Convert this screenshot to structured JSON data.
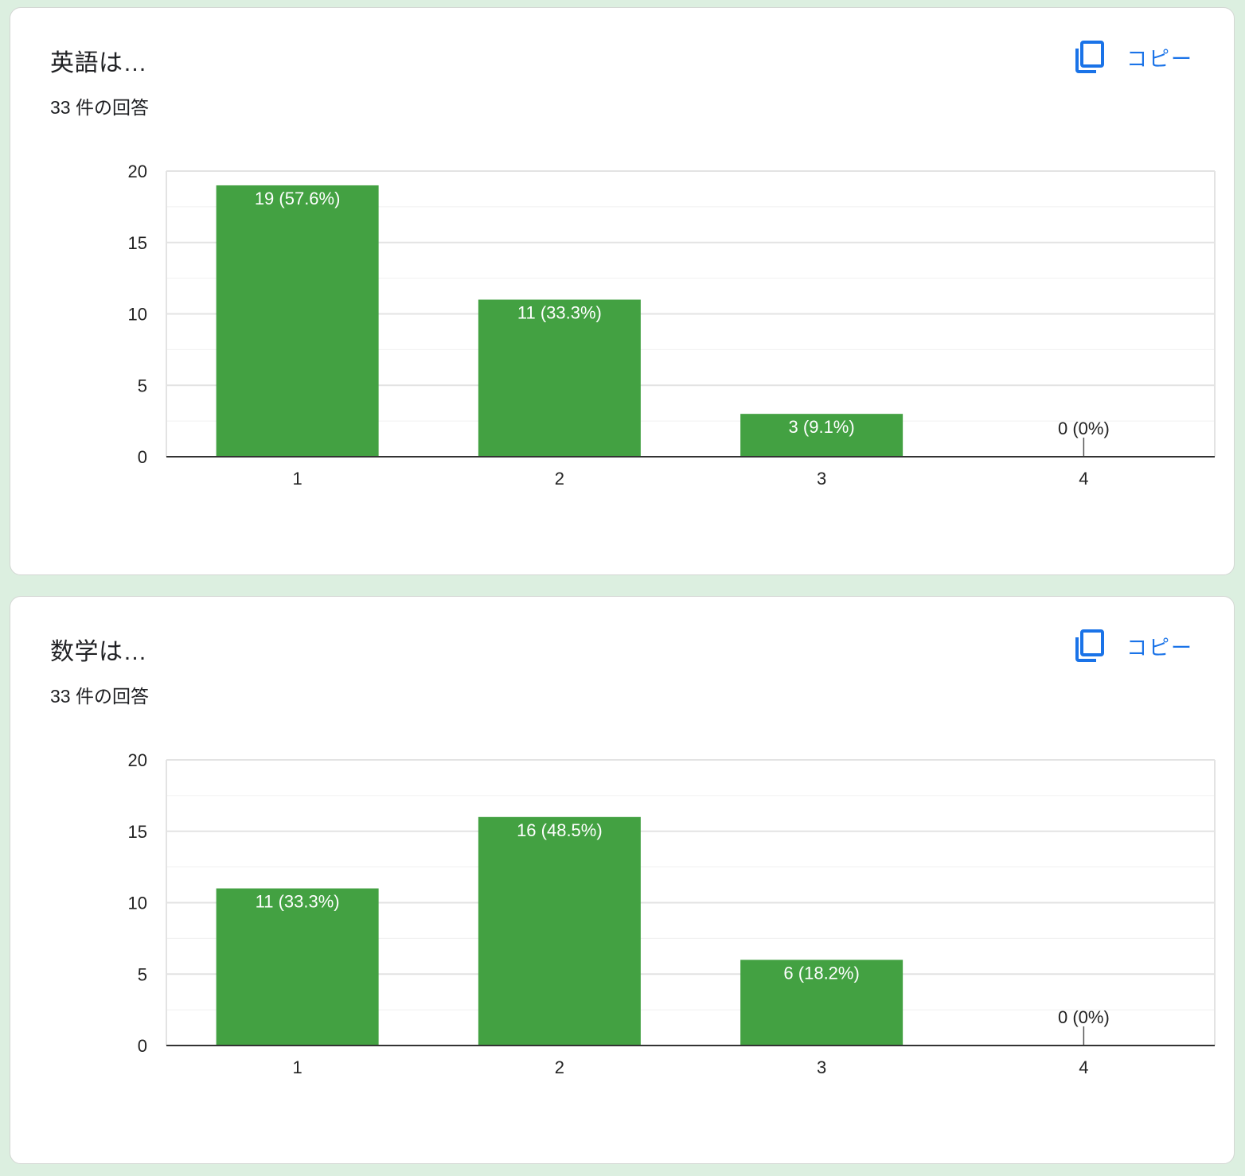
{
  "colors": {
    "bar": "#43a142",
    "accent": "#1a73e8",
    "grid_major": "#e3e3e3",
    "grid_minor": "#f0f0f0",
    "axis": "#333333"
  },
  "copy_icon": "content-copy-icon",
  "cards": [
    {
      "title": "英語は…",
      "response_count": "33 件の回答",
      "copy_label": "コピー"
    },
    {
      "title": "数学は…",
      "response_count": "33 件の回答",
      "copy_label": "コピー"
    }
  ],
  "chart_data": [
    {
      "type": "bar",
      "title": "英語は…",
      "categories": [
        "1",
        "2",
        "3",
        "4"
      ],
      "values": [
        19,
        11,
        3,
        0
      ],
      "data_labels": [
        "19 (57.6%)",
        "11 (33.3%)",
        "3 (9.1%)",
        "0 (0%)"
      ],
      "ylim": [
        0,
        20
      ],
      "yticks": [
        0,
        5,
        10,
        15,
        20
      ],
      "grid": true,
      "legend": "none",
      "xlabel": "",
      "ylabel": ""
    },
    {
      "type": "bar",
      "title": "数学は…",
      "categories": [
        "1",
        "2",
        "3",
        "4"
      ],
      "values": [
        11,
        16,
        6,
        0
      ],
      "data_labels": [
        "11 (33.3%)",
        "16 (48.5%)",
        "6 (18.2%)",
        "0 (0%)"
      ],
      "ylim": [
        0,
        20
      ],
      "yticks": [
        0,
        5,
        10,
        15,
        20
      ],
      "grid": true,
      "legend": "none",
      "xlabel": "",
      "ylabel": ""
    }
  ]
}
